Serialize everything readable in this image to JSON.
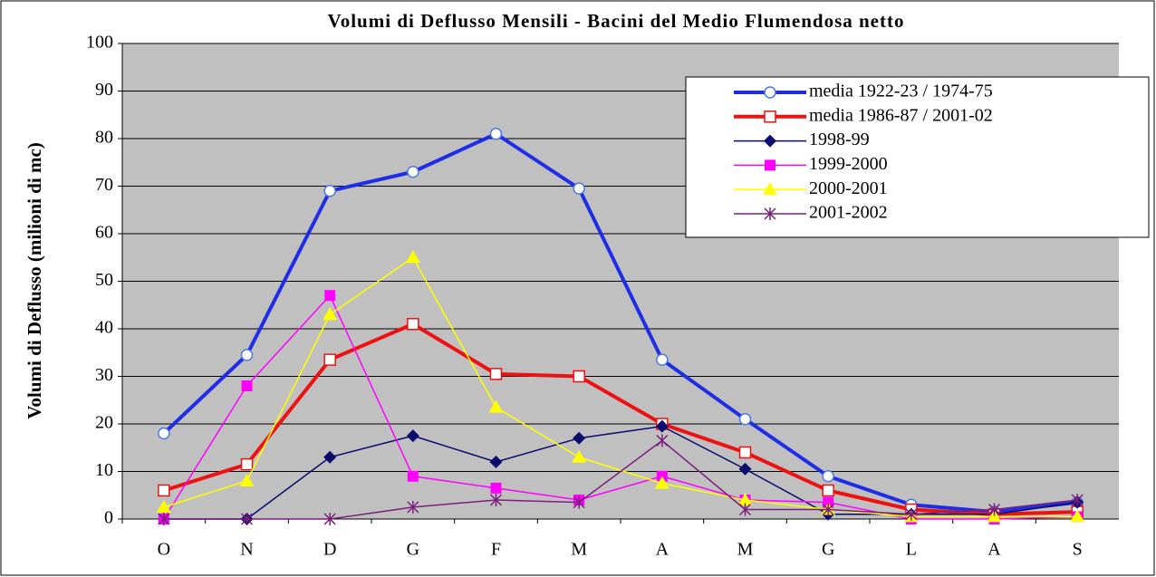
{
  "chart_data": {
    "type": "line",
    "title": "Volumi di Deflusso Mensili - Bacini del Medio Flumendosa netto",
    "y_label": "Volumi di Deflusso (milioni di mc)",
    "categories": [
      "O",
      "N",
      "D",
      "G",
      "F",
      "M",
      "A",
      "M",
      "G",
      "L",
      "A",
      "S"
    ],
    "ylim": [
      0,
      100
    ],
    "yticks": [
      0,
      10,
      20,
      30,
      40,
      50,
      60,
      70,
      80,
      90,
      100
    ],
    "grid": true,
    "legend": "upper right",
    "series": [
      {
        "name": "media 1922-23 / 1974-75",
        "color": "#1f2ee6",
        "marker": "circle-open",
        "width": 4,
        "values": [
          18,
          34.5,
          69,
          73,
          81,
          69.5,
          33.5,
          21,
          9,
          3,
          1.5,
          3.5
        ]
      },
      {
        "name": "media 1986-87 / 2001-02",
        "color": "#ee1111",
        "marker": "square-open",
        "width": 4,
        "values": [
          6,
          11.5,
          33.5,
          41,
          30.5,
          30,
          20,
          14,
          6,
          2,
          1,
          1.5
        ]
      },
      {
        "name": "1998-99",
        "color": "#0a0a6e",
        "marker": "diamond",
        "width": 1.5,
        "values": [
          0,
          0,
          13,
          17.5,
          12,
          17,
          19.5,
          10.5,
          1,
          1,
          1,
          3.5
        ]
      },
      {
        "name": "1999-2000",
        "color": "#ff00ff",
        "marker": "square",
        "width": 1.5,
        "values": [
          0,
          28,
          47,
          9,
          6.5,
          4,
          9,
          4,
          3.5,
          0,
          0,
          0.5
        ]
      },
      {
        "name": "2000-2001",
        "color": "#ffff00",
        "marker": "triangle",
        "width": 1.5,
        "values": [
          2.5,
          8,
          43,
          55,
          23.5,
          13,
          7.5,
          4,
          2,
          0.5,
          0.5,
          0.5
        ]
      },
      {
        "name": "2001-2002",
        "color": "#7a1f7a",
        "marker": "star",
        "width": 1.5,
        "values": [
          0,
          0,
          0,
          2.5,
          4,
          3.5,
          16.5,
          2,
          2,
          1,
          2,
          4
        ]
      }
    ]
  }
}
